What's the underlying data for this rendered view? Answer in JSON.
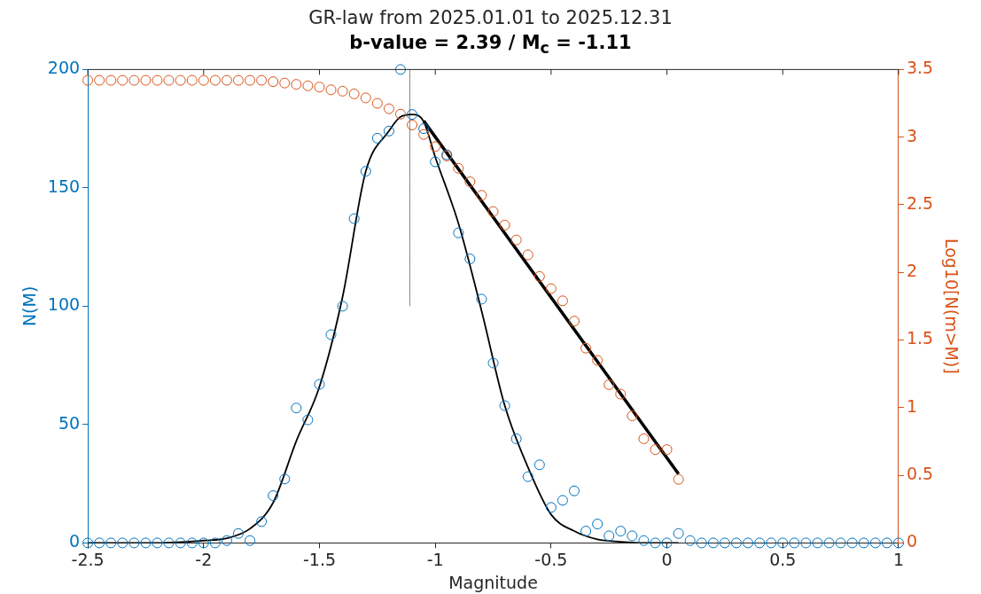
{
  "chart_data": {
    "type": "scatter",
    "title": "GR-law from 2025.01.01 to 2025.12.31",
    "subtitle": "b-value = 2.39 / M$_{c}$ = -1.11",
    "xlabel": "Magnitude",
    "ylabel": "N(M)",
    "y2label": "Log10[N(m>M)]",
    "xlim": [
      -2.5,
      1
    ],
    "xticks": [
      -2.5,
      -2,
      -1.5,
      -1,
      -0.5,
      0,
      0.5,
      1
    ],
    "ylim": [
      0,
      200
    ],
    "yticks": [
      0,
      50,
      100,
      150,
      200
    ],
    "y2lim": [
      0,
      3.5
    ],
    "y2ticks": [
      0,
      0.5,
      1,
      1.5,
      2,
      2.5,
      3,
      3.5
    ],
    "grid": false,
    "legend": false,
    "series": [
      {
        "type": "scatter",
        "marker": "circle",
        "color": "#0072bd",
        "x": [
          -2.5,
          -2.45,
          -2.4,
          -2.35,
          -2.3,
          -2.25,
          -2.2,
          -2.15,
          -2.1,
          -2.05,
          -2,
          -1.95,
          -1.9,
          -1.85,
          -1.8,
          -1.75,
          -1.7,
          -1.65,
          -1.6,
          -1.55,
          -1.5,
          -1.45,
          -1.4,
          -1.35,
          -1.3,
          -1.25,
          -1.2,
          -1.15,
          -1.1,
          -1.05,
          -1,
          -0.95,
          -0.9,
          -0.85,
          -0.8,
          -0.75,
          -0.7,
          -0.65,
          -0.6,
          -0.55,
          -0.5,
          -0.45,
          -0.4,
          -0.35,
          -0.3,
          -0.25,
          -0.2,
          -0.15,
          -0.1,
          -0.05,
          0,
          0.05,
          0.1,
          0.15,
          0.2,
          0.25,
          0.3,
          0.35,
          0.4,
          0.45,
          0.5,
          0.55,
          0.6,
          0.65,
          0.7,
          0.75,
          0.8,
          0.85,
          0.9,
          0.95,
          1
        ],
        "values": [
          0,
          0,
          0,
          0,
          0,
          0,
          0,
          0,
          0,
          0,
          0,
          0,
          1,
          4,
          1,
          9,
          20,
          27,
          57,
          52,
          67,
          88,
          100,
          137,
          157,
          171,
          174,
          200,
          181,
          175,
          161,
          164,
          131,
          120,
          103,
          76,
          58,
          44,
          28,
          33,
          15,
          18,
          22,
          5,
          8,
          3,
          5,
          3,
          1,
          0,
          0,
          4,
          1,
          0,
          0,
          0,
          0,
          0,
          0,
          0,
          0,
          0,
          0,
          0,
          0,
          0,
          0,
          0,
          0,
          0,
          0
        ]
      },
      {
        "type": "scatter",
        "marker": "circle",
        "color": "#d95319",
        "axis": "y2",
        "x": [
          -2.5,
          -2.45,
          -2.4,
          -2.35,
          -2.3,
          -2.25,
          -2.2,
          -2.15,
          -2.1,
          -2.05,
          -2,
          -1.95,
          -1.9,
          -1.85,
          -1.8,
          -1.75,
          -1.7,
          -1.65,
          -1.6,
          -1.55,
          -1.5,
          -1.45,
          -1.4,
          -1.35,
          -1.3,
          -1.25,
          -1.2,
          -1.15,
          -1.1,
          -1.05,
          -1,
          -0.95,
          -0.9,
          -0.85,
          -0.8,
          -0.75,
          -0.7,
          -0.65,
          -0.6,
          -0.55,
          -0.5,
          -0.45,
          -0.4,
          -0.35,
          -0.3,
          -0.25,
          -0.2,
          -0.15,
          -0.1,
          -0.05,
          0,
          0.05
        ],
        "values": [
          3.42,
          3.42,
          3.42,
          3.42,
          3.42,
          3.42,
          3.42,
          3.42,
          3.42,
          3.42,
          3.42,
          3.42,
          3.42,
          3.42,
          3.42,
          3.42,
          3.41,
          3.4,
          3.39,
          3.38,
          3.37,
          3.35,
          3.34,
          3.32,
          3.29,
          3.25,
          3.21,
          3.17,
          3.09,
          3.02,
          2.93,
          2.86,
          2.77,
          2.67,
          2.57,
          2.45,
          2.35,
          2.24,
          2.13,
          1.97,
          1.88,
          1.79,
          1.64,
          1.44,
          1.35,
          1.17,
          1.1,
          0.94,
          0.77,
          0.69,
          0.69,
          0.47
        ]
      },
      {
        "type": "line",
        "marker": "none",
        "color": "#000000",
        "x": [
          -2.5,
          -2.2,
          -2,
          -1.9,
          -1.8,
          -1.7,
          -1.6,
          -1.5,
          -1.4,
          -1.3,
          -1.2,
          -1.15,
          -1.1,
          -1.05,
          -1,
          -0.9,
          -0.8,
          -0.7,
          -0.6,
          -0.5,
          -0.4,
          -0.3,
          -0.2,
          -0.1,
          0,
          0.05
        ],
        "values": [
          0,
          0,
          1,
          2,
          6,
          17,
          43,
          66,
          104,
          157,
          174,
          180,
          181,
          178,
          163,
          135,
          98,
          58,
          32,
          12,
          5,
          1.5,
          0.5,
          0,
          0,
          0
        ]
      },
      {
        "type": "line",
        "marker": "none",
        "color": "#000000",
        "axis": "y2",
        "x": [
          -1.05,
          0.05
        ],
        "values": [
          3.12,
          0.51
        ]
      },
      {
        "type": "line",
        "marker": "none",
        "color": "#808080",
        "x": [
          -1.11,
          -1.11
        ],
        "values": [
          100,
          200
        ]
      }
    ]
  }
}
